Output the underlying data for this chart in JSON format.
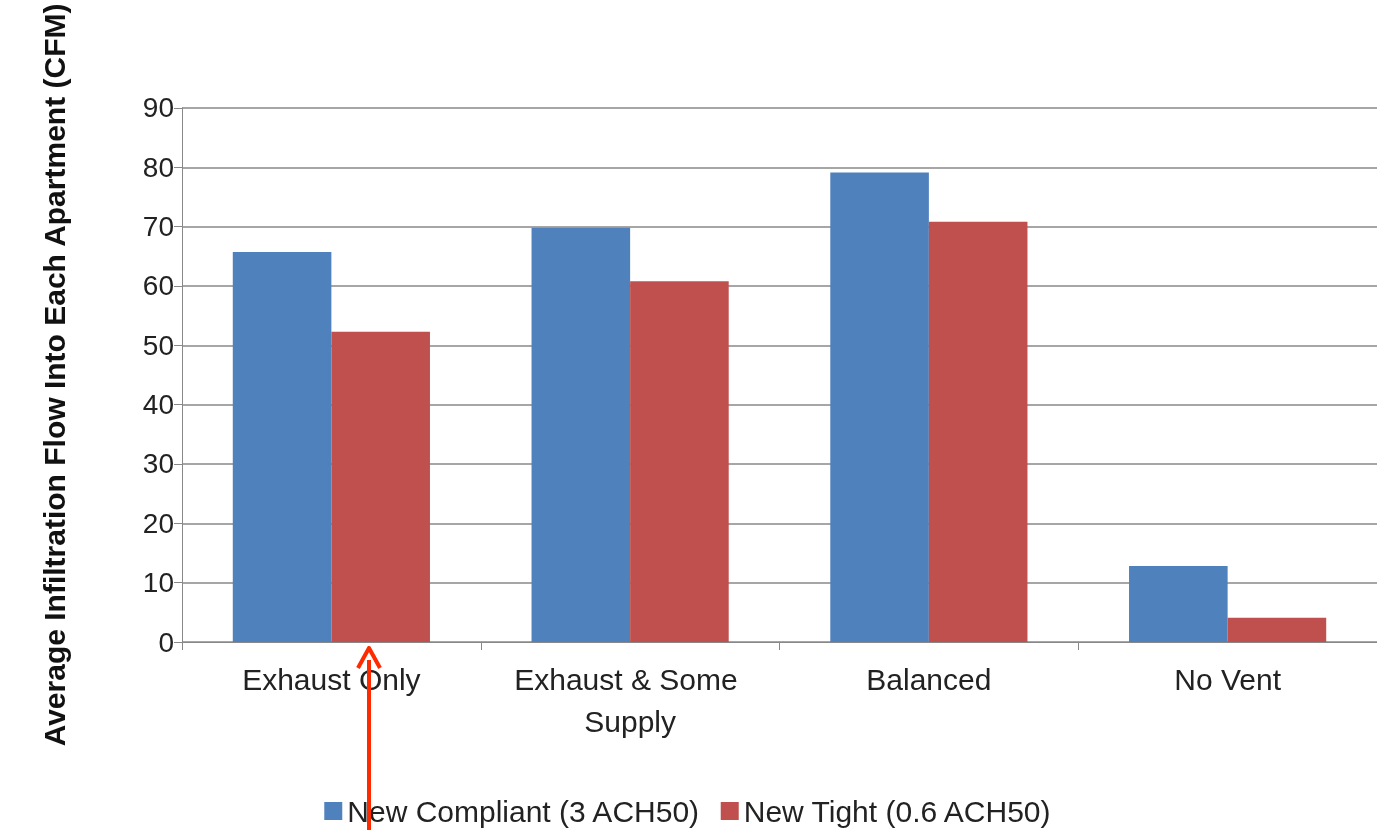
{
  "chart_data": {
    "type": "bar",
    "ylabel": "Average Infiltration Flow Into Each Apartment (CFM)",
    "categories": [
      "Exhaust Only",
      "Exhaust & Some Supply",
      "Balanced",
      "No Vent"
    ],
    "series": [
      {
        "name": "New Compliant (3 ACH50)",
        "color": "#4f81bd",
        "values": [
          65.7,
          69.8,
          79.1,
          12.8
        ]
      },
      {
        "name": "New Tight (0.6 ACH50)",
        "color": "#c0504d",
        "values": [
          52.3,
          60.8,
          70.8,
          4.1
        ]
      }
    ],
    "ylim": [
      0,
      90
    ],
    "yticks": [
      0,
      10,
      20,
      30,
      40,
      50,
      60,
      70,
      80,
      90
    ],
    "grid": "y",
    "legend": "bottom"
  }
}
